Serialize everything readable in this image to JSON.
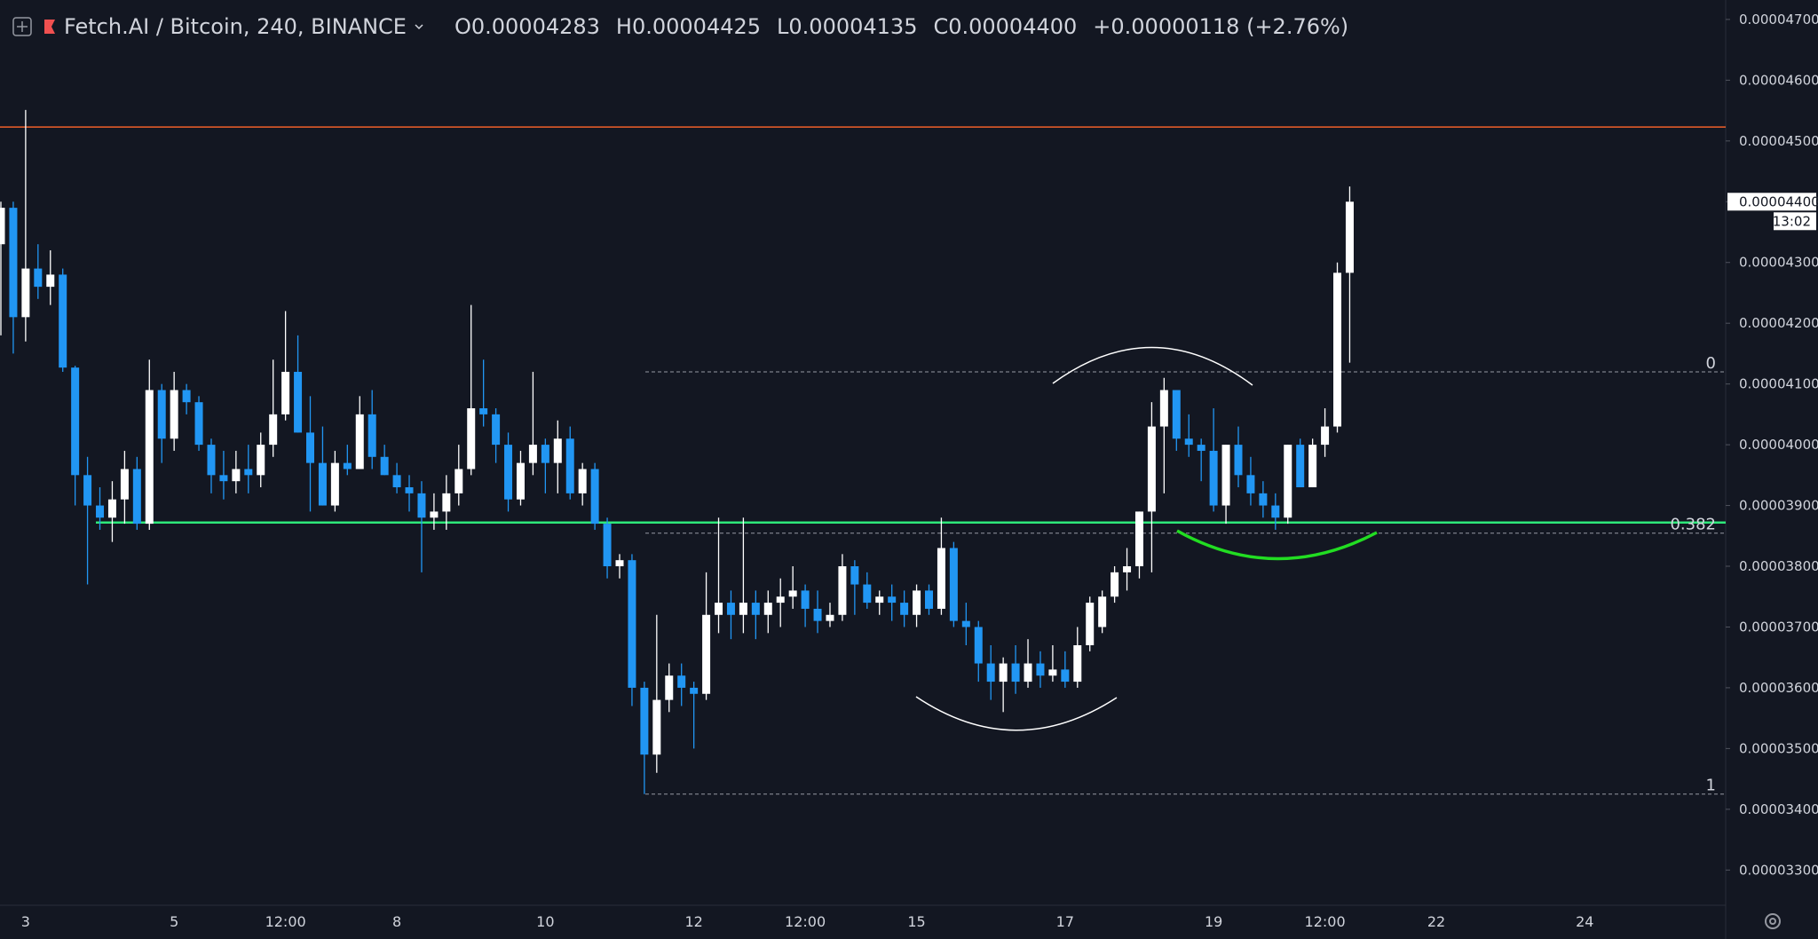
{
  "header": {
    "symbol": "Fetch.AI / Bitcoin, 240, BINANCE",
    "open": "O0.00004283",
    "high": "H0.00004425",
    "low": "L0.00004135",
    "close": "C0.00004400",
    "change": "+0.00000118 (+2.76%)"
  },
  "chart_data": {
    "type": "candlestick",
    "categories": [
      null,
      null,
      "3",
      null,
      null,
      null,
      null,
      null,
      null,
      null,
      null,
      null,
      null,
      null,
      "5",
      null,
      null,
      null,
      null,
      null,
      null,
      null,
      null,
      "12:00",
      null,
      null,
      null,
      null,
      null,
      null,
      null,
      null,
      "8",
      null,
      null,
      null,
      null,
      null,
      null,
      null,
      null,
      null,
      null,
      null,
      "10",
      null,
      null,
      null,
      null,
      null,
      null,
      null,
      null,
      null,
      null,
      null,
      "12",
      null,
      null,
      null,
      null,
      null,
      null,
      null,
      null,
      "12:00",
      null,
      null,
      null,
      null,
      null,
      null,
      null,
      null,
      "15",
      null,
      null,
      null,
      null,
      null,
      null,
      null,
      null,
      null,
      null,
      null,
      "17",
      null,
      null,
      null,
      null,
      null,
      null,
      null,
      null,
      null,
      null,
      null,
      "19",
      null,
      null,
      null,
      null,
      null,
      null,
      null,
      null,
      "12:00",
      null,
      null,
      null,
      null,
      null,
      null,
      null,
      null,
      "22",
      null,
      null,
      null,
      null,
      null,
      null,
      null,
      null,
      null,
      null,
      null,
      "24",
      null,
      null,
      null,
      null,
      null,
      null,
      null,
      null,
      null,
      null,
      null
    ],
    "open": [
      4.33e-05,
      4.39e-05,
      4.21e-05,
      4.29e-05,
      4.26e-05,
      4.28e-05,
      4.127e-05,
      3.95e-05,
      3.9e-05,
      3.88e-05,
      3.91e-05,
      3.96e-05,
      3.87e-05,
      4.09e-05,
      4.01e-05,
      4.09e-05,
      4.07e-05,
      4e-05,
      3.95e-05,
      3.94e-05,
      3.96e-05,
      3.95e-05,
      4e-05,
      4.05e-05,
      4.12e-05,
      4.02e-05,
      3.97e-05,
      3.9e-05,
      3.97e-05,
      3.96e-05,
      4.05e-05,
      3.98e-05,
      3.95e-05,
      3.93e-05,
      3.92e-05,
      3.88e-05,
      3.89e-05,
      3.92e-05,
      3.96e-05,
      4.06e-05,
      4.05e-05,
      4e-05,
      3.91e-05,
      3.97e-05,
      4e-05,
      3.97e-05,
      4.01e-05,
      3.92e-05,
      3.96e-05,
      3.87e-05,
      3.8e-05,
      3.81e-05,
      3.6e-05,
      3.49e-05,
      3.58e-05,
      3.62e-05,
      3.6e-05,
      3.59e-05,
      3.72e-05,
      3.74e-05,
      3.72e-05,
      3.74e-05,
      3.72e-05,
      3.74e-05,
      3.75e-05,
      3.76e-05,
      3.73e-05,
      3.71e-05,
      3.72e-05,
      3.8e-05,
      3.77e-05,
      3.74e-05,
      3.75e-05,
      3.74e-05,
      3.72e-05,
      3.76e-05,
      3.73e-05,
      3.83e-05,
      3.71e-05,
      3.7e-05,
      3.64e-05,
      3.61e-05,
      3.64e-05,
      3.61e-05,
      3.64e-05,
      3.62e-05,
      3.63e-05,
      3.61e-05,
      3.67e-05,
      3.7e-05,
      3.75e-05,
      3.79e-05,
      3.8e-05,
      3.89e-05,
      4.03e-05,
      4.09e-05,
      4.01e-05,
      4e-05,
      3.99e-05,
      3.9e-05,
      4e-05,
      3.95e-05,
      3.92e-05,
      3.9e-05,
      3.88e-05,
      4e-05,
      3.93e-05,
      4e-05,
      4.03e-05,
      4.283e-05,
      null,
      null,
      null,
      null,
      null,
      null,
      null,
      null,
      null,
      null,
      null,
      null,
      null,
      null,
      null,
      null,
      null,
      null,
      null,
      null,
      null,
      null,
      null,
      null,
      null,
      null,
      null,
      null,
      null,
      null
    ],
    "high": [
      4.4e-05,
      4.4e-05,
      4.551e-05,
      4.33e-05,
      4.32e-05,
      4.29e-05,
      4.13e-05,
      3.98e-05,
      3.93e-05,
      3.94e-05,
      3.99e-05,
      3.98e-05,
      4.14e-05,
      4.1e-05,
      4.12e-05,
      4.1e-05,
      4.08e-05,
      4.01e-05,
      3.99e-05,
      3.99e-05,
      4e-05,
      4.02e-05,
      4.14e-05,
      4.22e-05,
      4.18e-05,
      4.08e-05,
      4.03e-05,
      3.99e-05,
      4e-05,
      4.08e-05,
      4.09e-05,
      4e-05,
      3.97e-05,
      3.95e-05,
      3.94e-05,
      3.92e-05,
      3.95e-05,
      4e-05,
      4.23e-05,
      4.14e-05,
      4.06e-05,
      4.02e-05,
      3.99e-05,
      4.12e-05,
      4.01e-05,
      4.04e-05,
      4.03e-05,
      3.97e-05,
      3.97e-05,
      3.88e-05,
      3.82e-05,
      3.82e-05,
      3.61e-05,
      3.72e-05,
      3.64e-05,
      3.64e-05,
      3.61e-05,
      3.79e-05,
      3.88e-05,
      3.76e-05,
      3.88e-05,
      3.76e-05,
      3.76e-05,
      3.78e-05,
      3.8e-05,
      3.77e-05,
      3.76e-05,
      3.74e-05,
      3.82e-05,
      3.81e-05,
      3.79e-05,
      3.76e-05,
      3.77e-05,
      3.76e-05,
      3.77e-05,
      3.77e-05,
      3.88e-05,
      3.84e-05,
      3.74e-05,
      3.71e-05,
      3.67e-05,
      3.65e-05,
      3.67e-05,
      3.68e-05,
      3.66e-05,
      3.67e-05,
      3.66e-05,
      3.7e-05,
      3.75e-05,
      3.76e-05,
      3.8e-05,
      3.83e-05,
      3.89e-05,
      4.07e-05,
      4.11e-05,
      4.09e-05,
      4.05e-05,
      4.01e-05,
      4.06e-05,
      4e-05,
      4.03e-05,
      3.98e-05,
      3.94e-05,
      3.92e-05,
      4e-05,
      4.01e-05,
      4.01e-05,
      4.06e-05,
      4.3e-05,
      4.425e-05,
      null,
      null,
      null,
      null,
      null,
      null,
      null,
      null,
      null,
      null,
      null,
      null,
      null,
      null,
      null,
      null,
      null,
      null,
      null,
      null,
      null,
      null,
      null,
      null,
      null,
      null,
      null,
      null,
      null,
      null
    ],
    "low": [
      4.18e-05,
      4.15e-05,
      4.17e-05,
      4.24e-05,
      4.23e-05,
      4.12e-05,
      3.9e-05,
      3.77e-05,
      3.86e-05,
      3.84e-05,
      3.87e-05,
      3.86e-05,
      3.86e-05,
      3.97e-05,
      3.99e-05,
      4.05e-05,
      3.99e-05,
      3.92e-05,
      3.91e-05,
      3.92e-05,
      3.92e-05,
      3.93e-05,
      3.98e-05,
      4.04e-05,
      4.02e-05,
      3.89e-05,
      3.9e-05,
      3.89e-05,
      3.95e-05,
      3.96e-05,
      3.96e-05,
      3.95e-05,
      3.92e-05,
      3.89e-05,
      3.79e-05,
      3.86e-05,
      3.86e-05,
      3.9e-05,
      3.95e-05,
      4.03e-05,
      3.97e-05,
      3.89e-05,
      3.9e-05,
      3.95e-05,
      3.92e-05,
      3.92e-05,
      3.91e-05,
      3.9e-05,
      3.86e-05,
      3.78e-05,
      3.78e-05,
      3.57e-05,
      3.425e-05,
      3.46e-05,
      3.56e-05,
      3.57e-05,
      3.5e-05,
      3.58e-05,
      3.69e-05,
      3.68e-05,
      3.69e-05,
      3.68e-05,
      3.69e-05,
      3.7e-05,
      3.73e-05,
      3.7e-05,
      3.69e-05,
      3.7e-05,
      3.71e-05,
      3.72e-05,
      3.73e-05,
      3.72e-05,
      3.71e-05,
      3.7e-05,
      3.7e-05,
      3.72e-05,
      3.72e-05,
      3.7e-05,
      3.67e-05,
      3.61e-05,
      3.58e-05,
      3.56e-05,
      3.59e-05,
      3.6e-05,
      3.6e-05,
      3.61e-05,
      3.6e-05,
      3.6e-05,
      3.66e-05,
      3.69e-05,
      3.74e-05,
      3.76e-05,
      3.78e-05,
      3.79e-05,
      3.92e-05,
      3.99e-05,
      3.98e-05,
      3.94e-05,
      3.89e-05,
      3.87e-05,
      3.93e-05,
      3.9e-05,
      3.88e-05,
      3.86e-05,
      3.87e-05,
      3.93e-05,
      3.93e-05,
      3.98e-05,
      4.02e-05,
      4.135e-05,
      null,
      null,
      null,
      null,
      null,
      null,
      null,
      null,
      null,
      null,
      null,
      null,
      null,
      null,
      null,
      null,
      null,
      null,
      null,
      null,
      null,
      null,
      null,
      null,
      null,
      null,
      null,
      null,
      null,
      null
    ],
    "close": [
      4.39e-05,
      4.21e-05,
      4.29e-05,
      4.26e-05,
      4.28e-05,
      4.127e-05,
      3.95e-05,
      3.9e-05,
      3.88e-05,
      3.91e-05,
      3.96e-05,
      3.87e-05,
      4.09e-05,
      4.01e-05,
      4.09e-05,
      4.07e-05,
      4e-05,
      3.95e-05,
      3.94e-05,
      3.96e-05,
      3.95e-05,
      4e-05,
      4.05e-05,
      4.12e-05,
      4.02e-05,
      3.97e-05,
      3.9e-05,
      3.97e-05,
      3.96e-05,
      4.05e-05,
      3.98e-05,
      3.95e-05,
      3.93e-05,
      3.92e-05,
      3.88e-05,
      3.89e-05,
      3.92e-05,
      3.96e-05,
      4.06e-05,
      4.05e-05,
      4e-05,
      3.91e-05,
      3.97e-05,
      4e-05,
      3.97e-05,
      4.01e-05,
      3.92e-05,
      3.96e-05,
      3.87e-05,
      3.8e-05,
      3.81e-05,
      3.6e-05,
      3.49e-05,
      3.58e-05,
      3.62e-05,
      3.6e-05,
      3.59e-05,
      3.72e-05,
      3.74e-05,
      3.72e-05,
      3.74e-05,
      3.72e-05,
      3.74e-05,
      3.75e-05,
      3.76e-05,
      3.73e-05,
      3.71e-05,
      3.72e-05,
      3.8e-05,
      3.77e-05,
      3.74e-05,
      3.75e-05,
      3.74e-05,
      3.72e-05,
      3.76e-05,
      3.73e-05,
      3.83e-05,
      3.71e-05,
      3.7e-05,
      3.64e-05,
      3.61e-05,
      3.64e-05,
      3.61e-05,
      3.64e-05,
      3.62e-05,
      3.63e-05,
      3.61e-05,
      3.67e-05,
      3.74e-05,
      3.75e-05,
      3.79e-05,
      3.8e-05,
      3.89e-05,
      4.03e-05,
      4.09e-05,
      4.01e-05,
      4e-05,
      3.99e-05,
      3.9e-05,
      4e-05,
      3.95e-05,
      3.92e-05,
      3.9e-05,
      3.88e-05,
      4e-05,
      3.93e-05,
      4e-05,
      4.03e-05,
      4.283e-05,
      4.4e-05,
      null,
      null,
      null,
      null,
      null,
      null,
      null,
      null,
      null,
      null,
      null,
      null,
      null,
      null,
      null,
      null,
      null,
      null,
      null,
      null,
      null,
      null,
      null,
      null,
      null,
      null,
      null,
      null,
      null,
      null
    ],
    "up_color": "#ffffff",
    "down_color": "#2196f3",
    "ylim": [
      3.242e-05,
      4.732e-05
    ],
    "yticks": [
      {
        "value": 3.3e-05,
        "label": "0.00003300"
      },
      {
        "value": 3.4e-05,
        "label": "0.00003400"
      },
      {
        "value": 3.5e-05,
        "label": "0.00003500"
      },
      {
        "value": 3.6e-05,
        "label": "0.00003600"
      },
      {
        "value": 3.7e-05,
        "label": "0.00003700"
      },
      {
        "value": 3.8e-05,
        "label": "0.00003800"
      },
      {
        "value": 3.9e-05,
        "label": "0.00003900"
      },
      {
        "value": 4e-05,
        "label": "0.00004000"
      },
      {
        "value": 4.1e-05,
        "label": "0.00004100"
      },
      {
        "value": 4.2e-05,
        "label": "0.00004200"
      },
      {
        "value": 4.3e-05,
        "label": "0.00004300"
      },
      {
        "value": 4.4e-05,
        "label": "0.00004400"
      },
      {
        "value": 4.5e-05,
        "label": "0.00004500"
      },
      {
        "value": 4.6e-05,
        "label": "0.00004600"
      },
      {
        "value": 4.7e-05,
        "label": "0.00004700"
      }
    ],
    "grid": false,
    "hlines": [
      {
        "value": 4.523e-05,
        "color": "#f0602a"
      },
      {
        "value": 3.872e-05,
        "color": "#2ee87a"
      }
    ],
    "fib": {
      "high": 4.12e-05,
      "low": 3.425e-05,
      "levels": [
        0,
        0.382,
        1
      ]
    },
    "last_price_label": "0.00004400",
    "countdown": "13:02"
  }
}
